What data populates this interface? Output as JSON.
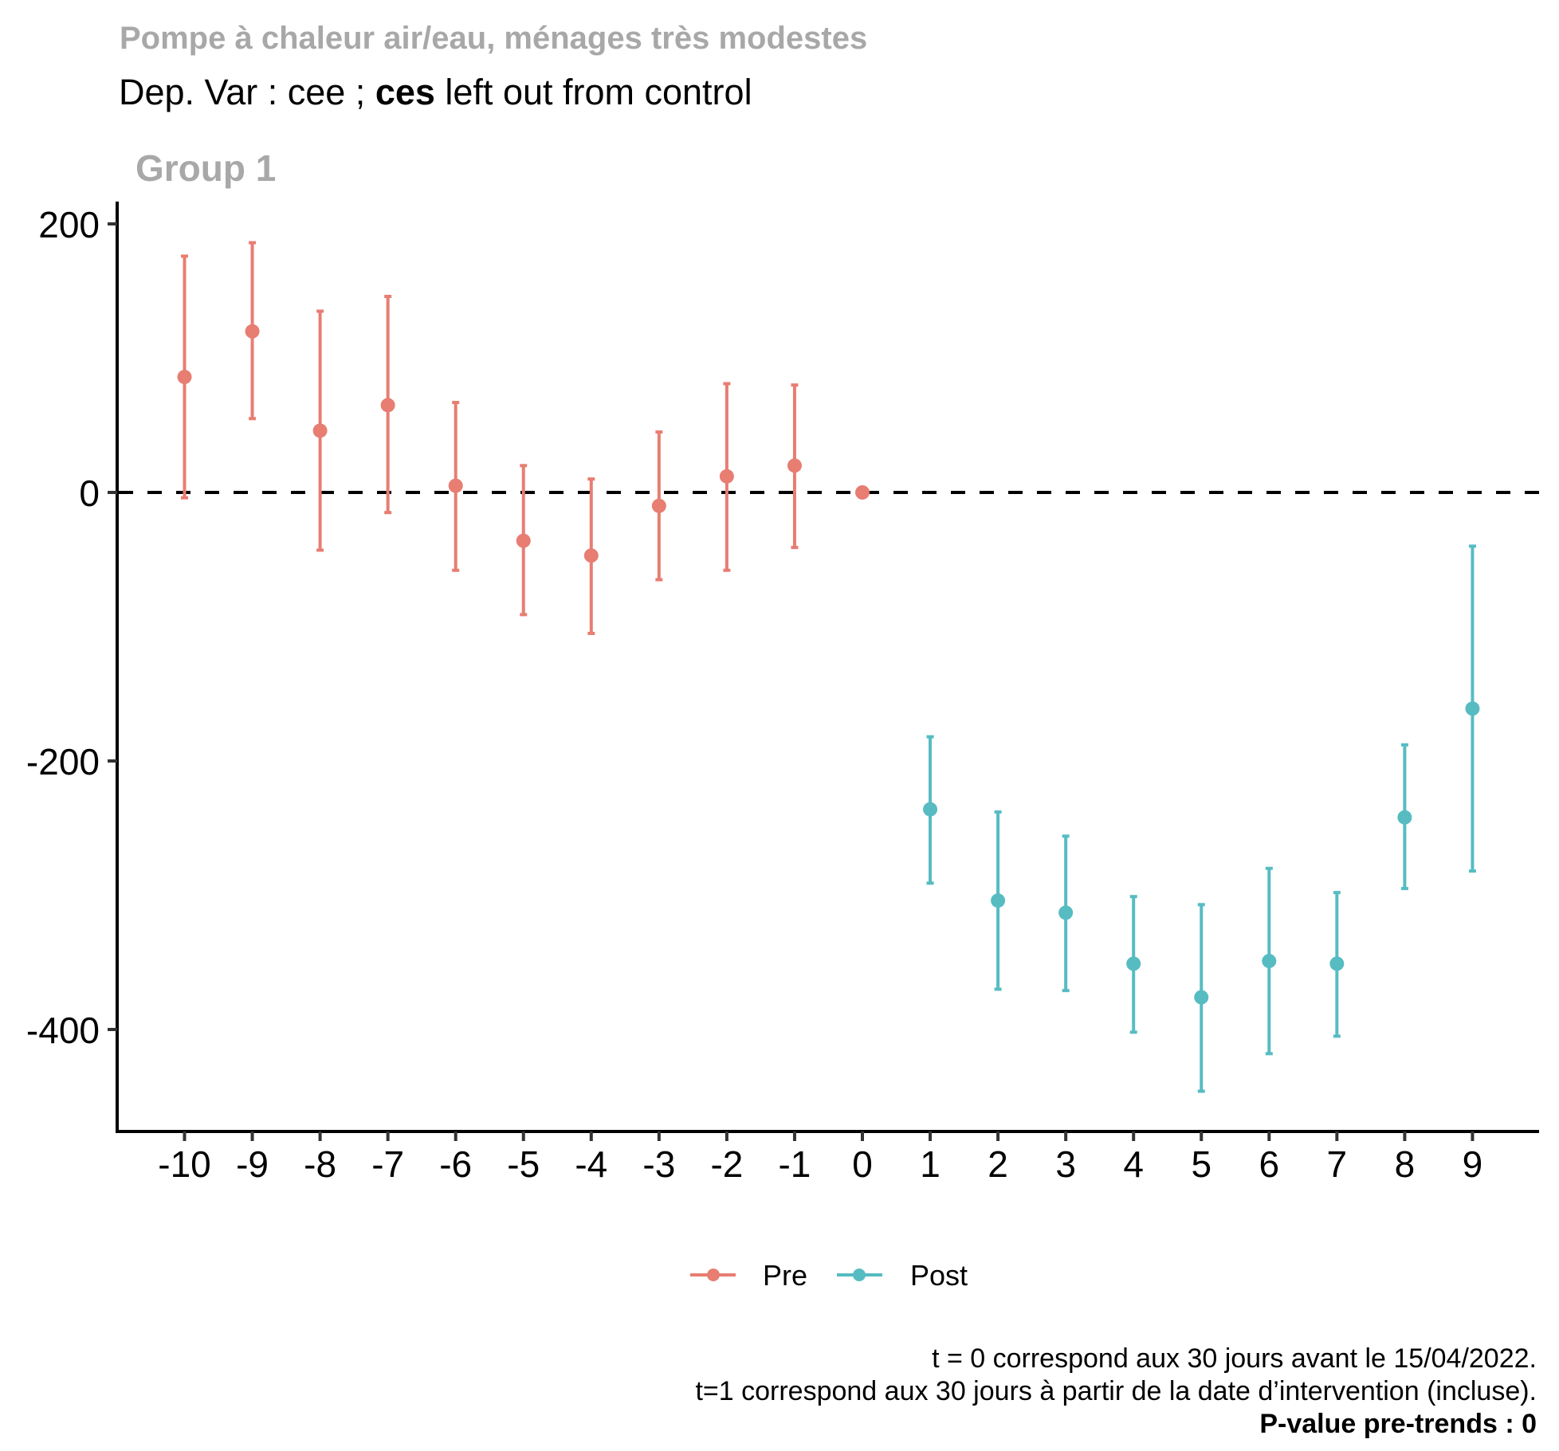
{
  "title": "Pompe à chaleur air/eau, ménages très modestes",
  "subtitle": {
    "prefix": "Dep. Var : cee ; ",
    "bold": "ces",
    "suffix": " left out from control"
  },
  "facet_label": "Group 1",
  "caption": {
    "line1": "t = 0 correspond aux 30 jours avant le 15/04/2022.",
    "line2": "t=1 correspond aux 30 jours à partir de la date d’intervention (incluse).",
    "line3": "P-value pre-trends : 0"
  },
  "chart_data": {
    "type": "scatter",
    "subtype": "event-study with error bars",
    "title": "Pompe à chaleur air/eau, ménages très modestes",
    "xlabel": "",
    "ylabel": "",
    "xlim": [
      -11,
      10.3
    ],
    "ylim": [
      -475,
      215
    ],
    "x_ticks": [
      -10,
      -9,
      -8,
      -7,
      -6,
      -5,
      -4,
      -3,
      -2,
      -1,
      0,
      1,
      2,
      3,
      4,
      5,
      6,
      7,
      8,
      9
    ],
    "x_tick_labels": [
      "-10",
      "-9",
      "-8",
      "-7",
      "-6",
      "-5",
      "-4",
      "-3",
      "-2",
      "-1",
      "0",
      "1",
      "2",
      "3",
      "4",
      "5",
      "6",
      "7",
      "8",
      "9"
    ],
    "y_ticks": [
      200,
      0,
      -200,
      -400
    ],
    "y_tick_labels": [
      "200",
      "0",
      "-200",
      "-400"
    ],
    "reference_line": {
      "y": 0,
      "style": "dashed"
    },
    "grid": false,
    "legend": {
      "position": "bottom",
      "entries": [
        "Pre",
        "Post"
      ]
    },
    "series": [
      {
        "name": "Pre",
        "color": "#E87D72",
        "points": [
          {
            "x": -10,
            "y": 86,
            "lower": -4,
            "upper": 176
          },
          {
            "x": -9,
            "y": 120,
            "lower": 55,
            "upper": 186
          },
          {
            "x": -8,
            "y": 46,
            "lower": -43,
            "upper": 135
          },
          {
            "x": -7,
            "y": 65,
            "lower": -15,
            "upper": 146
          },
          {
            "x": -6,
            "y": 5,
            "lower": -58,
            "upper": 67
          },
          {
            "x": -5,
            "y": -36,
            "lower": -91,
            "upper": 20
          },
          {
            "x": -4,
            "y": -47,
            "lower": -105,
            "upper": 10
          },
          {
            "x": -3,
            "y": -10,
            "lower": -65,
            "upper": 45
          },
          {
            "x": -2,
            "y": 12,
            "lower": -58,
            "upper": 81
          },
          {
            "x": -1,
            "y": 20,
            "lower": -41,
            "upper": 80
          },
          {
            "x": 0,
            "y": 0,
            "lower": null,
            "upper": null
          }
        ]
      },
      {
        "name": "Post",
        "color": "#56BCC2",
        "points": [
          {
            "x": 1,
            "y": -236,
            "lower": -291,
            "upper": -182
          },
          {
            "x": 2,
            "y": -304,
            "lower": -370,
            "upper": -238
          },
          {
            "x": 3,
            "y": -313,
            "lower": -371,
            "upper": -256
          },
          {
            "x": 4,
            "y": -351,
            "lower": -402,
            "upper": -301
          },
          {
            "x": 5,
            "y": -376,
            "lower": -446,
            "upper": -307
          },
          {
            "x": 6,
            "y": -349,
            "lower": -418,
            "upper": -280
          },
          {
            "x": 7,
            "y": -351,
            "lower": -405,
            "upper": -298
          },
          {
            "x": 8,
            "y": -242,
            "lower": -295,
            "upper": -188
          },
          {
            "x": 9,
            "y": -161,
            "lower": -282,
            "upper": -40
          }
        ]
      }
    ]
  }
}
